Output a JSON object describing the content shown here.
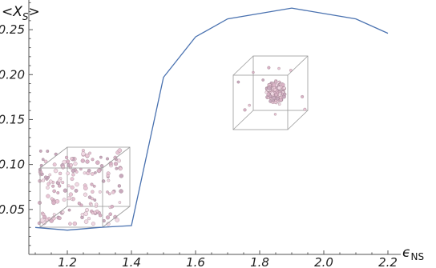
{
  "chart_data": {
    "type": "line",
    "ylabel": "<X",
    "ylabel_sub": "S",
    "ylabel_close": ">",
    "xlabel_symbol": "ϵ",
    "xlabel_sub": "NS",
    "xlim": [
      1.08,
      2.24
    ],
    "ylim": [
      0.0,
      0.283
    ],
    "x_ticks": [
      1.2,
      1.4,
      1.6,
      1.8,
      2.0,
      2.2
    ],
    "x_tick_labels": [
      "1.2",
      "1.4",
      "1.6",
      "1.8",
      "2.0",
      "2.2"
    ],
    "y_ticks": [
      0.05,
      0.1,
      0.15,
      0.2,
      0.25
    ],
    "y_tick_labels": [
      "0.05",
      "0.10",
      "0.15",
      "0.20",
      "0.25"
    ],
    "grid": false,
    "series": [
      {
        "color": "#4a72b0",
        "x": [
          1.1,
          1.2,
          1.3,
          1.4,
          1.5,
          1.6,
          1.7,
          1.8,
          1.9,
          2.0,
          2.1,
          2.2
        ],
        "y": [
          0.03,
          0.027,
          0.03,
          0.032,
          0.197,
          0.242,
          0.262,
          0.268,
          0.274,
          0.268,
          0.262,
          0.246
        ]
      }
    ],
    "insets": [
      {
        "name": "dispersed-particles-cube",
        "state": "dispersed"
      },
      {
        "name": "clustered-particles-cube",
        "state": "clustered"
      }
    ]
  }
}
